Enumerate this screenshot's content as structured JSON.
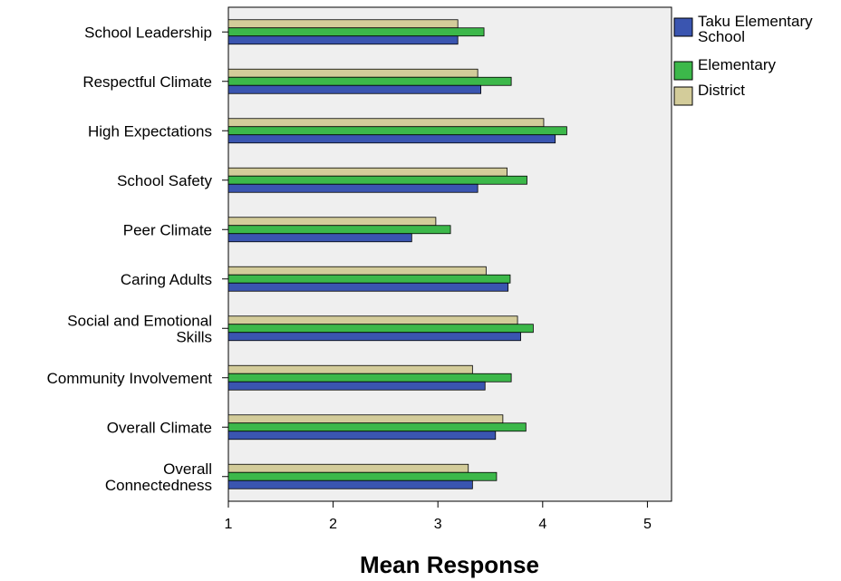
{
  "chart_data": {
    "type": "bar",
    "orientation": "horizontal",
    "categories": [
      [
        "School Leadership"
      ],
      [
        "Respectful Climate"
      ],
      [
        "High Expectations"
      ],
      [
        "School Safety"
      ],
      [
        "Peer Climate"
      ],
      [
        "Caring Adults"
      ],
      [
        "Social and Emotional",
        "Skills"
      ],
      [
        "Community Involvement"
      ],
      [
        "Overall Climate"
      ],
      [
        "Overall",
        "Connectedness"
      ]
    ],
    "series": [
      {
        "name": "District",
        "color": "#d3cc9a",
        "values": [
          3.19,
          3.38,
          4.01,
          3.66,
          2.98,
          3.46,
          3.76,
          3.33,
          3.62,
          3.29
        ]
      },
      {
        "name": "Elementary",
        "color": "#3cb84a",
        "values": [
          3.44,
          3.7,
          4.23,
          3.85,
          3.12,
          3.69,
          3.91,
          3.7,
          3.84,
          3.56
        ]
      },
      {
        "name": "Taku Elementary School",
        "color": "#3a55b0",
        "values": [
          3.19,
          3.41,
          4.12,
          3.38,
          2.75,
          3.67,
          3.79,
          3.45,
          3.55,
          3.33
        ]
      }
    ],
    "xlabel": "Mean Response",
    "ylabel": "",
    "xlim": [
      1,
      5.23
    ],
    "xticks": [
      1,
      2,
      3,
      4,
      5
    ],
    "grid": false,
    "legend_position": "right",
    "legend": [
      {
        "lines": [
          "Taku Elementary",
          "School"
        ],
        "color": "#3a55b0"
      },
      {
        "lines": [
          "Elementary"
        ],
        "color": "#3cb84a"
      },
      {
        "lines": [
          "District"
        ],
        "color": "#d3cc9a"
      }
    ],
    "plot_background": "#efefef"
  }
}
